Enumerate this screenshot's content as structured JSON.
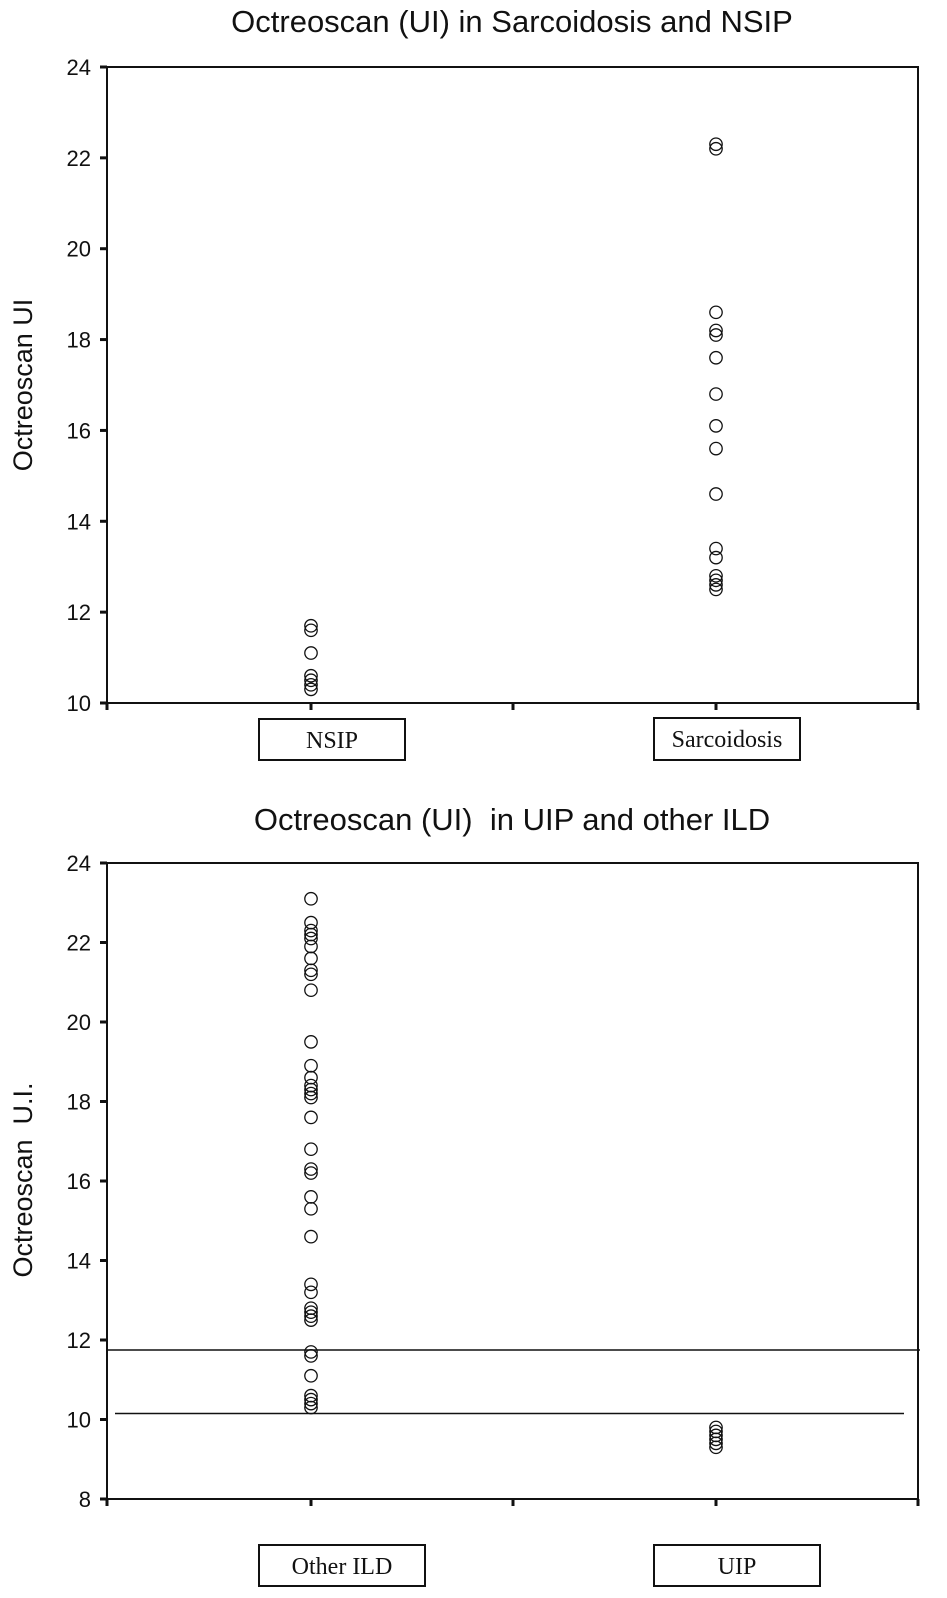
{
  "chart_data": [
    {
      "type": "scatter",
      "title": "Octreoscan (UI) in Sarcoidosis and NSIP",
      "xlabel": "",
      "ylabel": "Octreoscan UI",
      "categories": [
        "NSIP",
        "Sarcoidosis"
      ],
      "ylim": [
        10,
        24
      ],
      "yticks": [
        10,
        12,
        14,
        16,
        18,
        20,
        22,
        24
      ],
      "grid": false,
      "series": [
        {
          "category": "NSIP",
          "values": [
            11.7,
            11.6,
            11.1,
            10.6,
            10.5,
            10.4,
            10.3
          ]
        },
        {
          "category": "Sarcoidosis",
          "values": [
            22.3,
            22.2,
            18.6,
            18.2,
            18.1,
            17.6,
            16.8,
            16.1,
            15.6,
            14.6,
            13.4,
            13.2,
            12.8,
            12.7,
            12.6,
            12.5
          ]
        }
      ],
      "reference_lines": []
    },
    {
      "type": "scatter",
      "title": "Octreoscan (UI)  in UIP and other ILD",
      "xlabel": "",
      "ylabel": "Octreoscan  U.I.",
      "categories": [
        "Other ILD",
        "UIP"
      ],
      "ylim": [
        8,
        24
      ],
      "yticks": [
        8,
        10,
        12,
        14,
        16,
        18,
        20,
        22,
        24
      ],
      "grid": false,
      "series": [
        {
          "category": "Other ILD",
          "values": [
            23.1,
            22.5,
            22.3,
            22.2,
            22.1,
            21.9,
            21.6,
            21.3,
            21.2,
            20.8,
            19.5,
            18.9,
            18.6,
            18.4,
            18.3,
            18.2,
            18.1,
            17.6,
            16.8,
            16.3,
            16.2,
            15.6,
            15.3,
            14.6,
            13.4,
            13.2,
            12.8,
            12.7,
            12.6,
            12.5,
            11.7,
            11.6,
            11.1,
            10.6,
            10.5,
            10.4,
            10.3
          ]
        },
        {
          "category": "UIP",
          "values": [
            9.8,
            9.7,
            9.6,
            9.5,
            9.4,
            9.3
          ]
        }
      ],
      "reference_lines": [
        11.75,
        10.15
      ]
    }
  ]
}
